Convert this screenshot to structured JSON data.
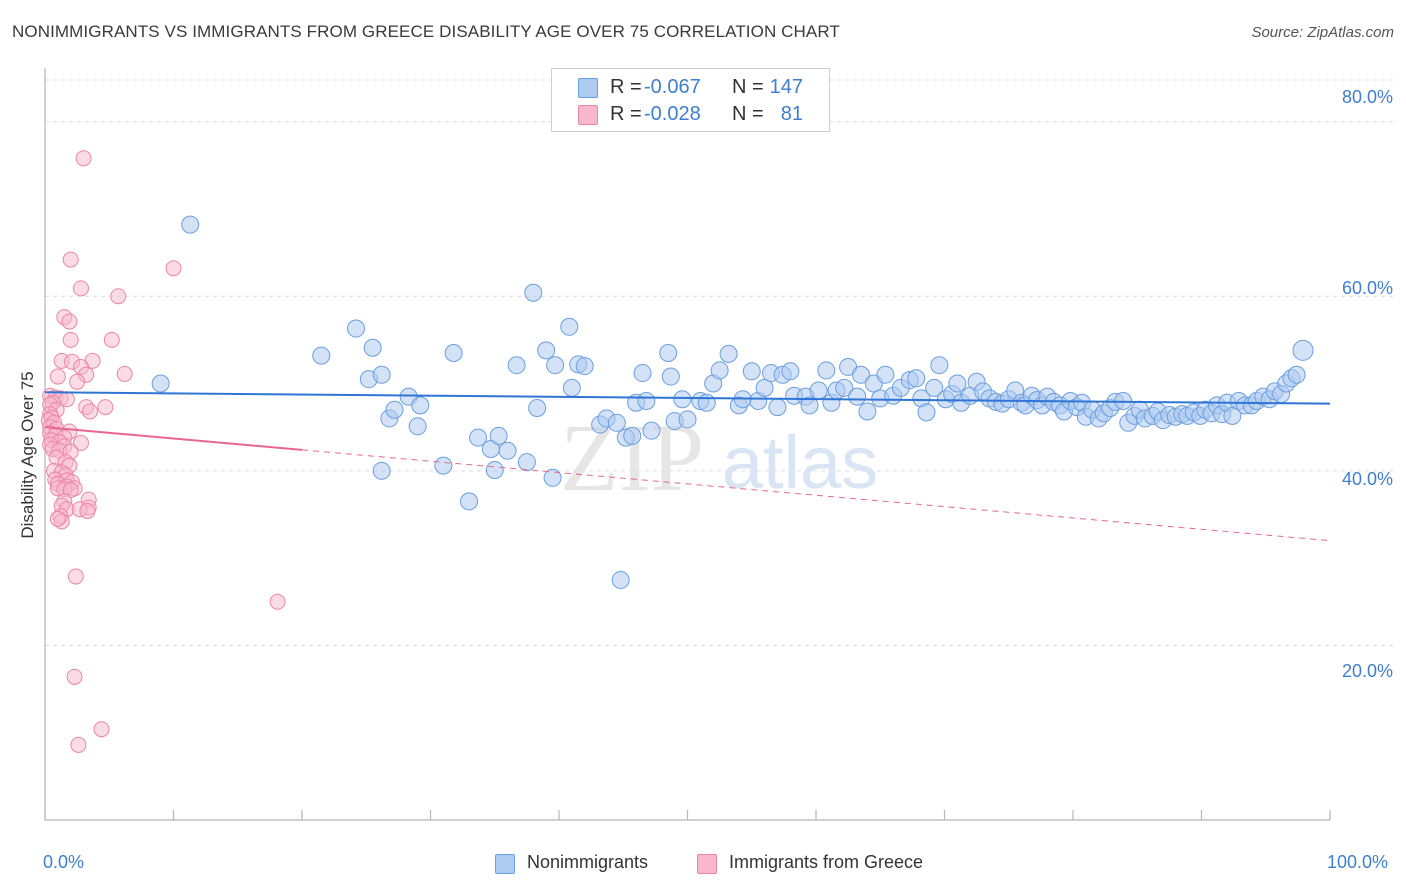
{
  "title": "NONIMMIGRANTS VS IMMIGRANTS FROM GREECE DISABILITY AGE OVER 75 CORRELATION CHART",
  "source": "Source: ZipAtlas.com",
  "watermark": {
    "zip": "ZIP",
    "atlas": "atlas"
  },
  "colors": {
    "blue_fill": "#aecbf1",
    "blue_stroke": "#6a9fe0",
    "blue_line": "#2e75d6",
    "pink_fill": "#f7b8cb",
    "pink_stroke": "#ec86a6",
    "pink_line": "#e8668f",
    "tick_text": "#3f7fd0",
    "grid": "#dcdcdc"
  },
  "stats": [
    {
      "label_r": "R =",
      "r": "-0.067",
      "label_n": "N =",
      "n": "147",
      "series": "Nonimmigrants"
    },
    {
      "label_r": "R =",
      "r": "-0.028",
      "label_n": "N =",
      "n": "81",
      "series": "Immigrants from Greece"
    }
  ],
  "legend": [
    "Nonimmigrants",
    "Immigrants from Greece"
  ],
  "chart_data": {
    "type": "scatter",
    "title": "NONIMMIGRANTS VS IMMIGRANTS FROM GREECE DISABILITY AGE OVER 75 CORRELATION CHART",
    "xlabel": "",
    "ylabel": "Disability Age Over 75",
    "xlim": [
      0,
      100
    ],
    "ylim": [
      0,
      85
    ],
    "x_tick_labels": [
      "0.0%",
      "100.0%"
    ],
    "y_ticks": [
      20,
      40,
      60,
      80
    ],
    "y_tick_labels": [
      "20.0%",
      "40.0%",
      "60.0%",
      "80.0%"
    ],
    "grid": true,
    "series": [
      {
        "name": "Nonimmigrants",
        "trend": {
          "x0": 0,
          "y0": 49.0,
          "x1": 100,
          "y1": 47.7,
          "dashed_from": null
        },
        "points": [
          [
            11.3,
            68.2
          ],
          [
            9.0,
            50.0
          ],
          [
            21.5,
            53.2
          ],
          [
            24.2,
            56.3
          ],
          [
            25.2,
            50.5
          ],
          [
            25.5,
            54.1
          ],
          [
            26.2,
            51.0
          ],
          [
            26.2,
            40.0
          ],
          [
            26.8,
            46.0
          ],
          [
            27.2,
            47.0
          ],
          [
            28.3,
            48.5
          ],
          [
            29.0,
            45.1
          ],
          [
            29.2,
            47.5
          ],
          [
            31.0,
            40.6
          ],
          [
            31.8,
            53.5
          ],
          [
            33.0,
            36.5
          ],
          [
            33.7,
            43.8
          ],
          [
            34.7,
            42.5
          ],
          [
            35.0,
            40.1
          ],
          [
            35.3,
            44.0
          ],
          [
            36.0,
            42.3
          ],
          [
            36.7,
            52.1
          ],
          [
            37.5,
            41.0
          ],
          [
            38.0,
            60.4
          ],
          [
            38.3,
            47.2
          ],
          [
            39.0,
            53.8
          ],
          [
            39.5,
            39.2
          ],
          [
            39.7,
            52.1
          ],
          [
            40.8,
            56.5
          ],
          [
            41.0,
            49.5
          ],
          [
            41.5,
            52.2
          ],
          [
            42.0,
            52.0
          ],
          [
            43.2,
            45.3
          ],
          [
            43.7,
            46.0
          ],
          [
            44.5,
            45.5
          ],
          [
            44.8,
            27.5
          ],
          [
            45.2,
            43.8
          ],
          [
            45.7,
            44.0
          ],
          [
            46.0,
            47.8
          ],
          [
            46.5,
            51.2
          ],
          [
            46.8,
            48.0
          ],
          [
            47.2,
            44.6
          ],
          [
            48.5,
            53.5
          ],
          [
            48.7,
            50.8
          ],
          [
            49.0,
            45.7
          ],
          [
            49.6,
            48.2
          ],
          [
            50.0,
            45.9
          ],
          [
            51.0,
            48.0
          ],
          [
            51.5,
            47.8
          ],
          [
            52.0,
            50.0
          ],
          [
            52.5,
            51.5
          ],
          [
            53.2,
            53.4
          ],
          [
            54.0,
            47.5
          ],
          [
            54.3,
            48.2
          ],
          [
            55.0,
            51.4
          ],
          [
            55.5,
            48.0
          ],
          [
            56.0,
            49.5
          ],
          [
            56.5,
            51.2
          ],
          [
            57.0,
            47.3
          ],
          [
            57.4,
            51.0
          ],
          [
            58.0,
            51.4
          ],
          [
            58.3,
            48.6
          ],
          [
            59.2,
            48.5
          ],
          [
            59.5,
            47.5
          ],
          [
            60.2,
            49.2
          ],
          [
            60.8,
            51.5
          ],
          [
            61.2,
            47.8
          ],
          [
            61.6,
            49.2
          ],
          [
            62.2,
            49.5
          ],
          [
            62.5,
            51.9
          ],
          [
            63.2,
            48.5
          ],
          [
            63.5,
            51.0
          ],
          [
            64.0,
            46.8
          ],
          [
            64.5,
            50.0
          ],
          [
            65.0,
            48.3
          ],
          [
            65.4,
            51.0
          ],
          [
            66.0,
            48.6
          ],
          [
            66.6,
            49.5
          ],
          [
            67.3,
            50.4
          ],
          [
            67.8,
            50.6
          ],
          [
            68.2,
            48.3
          ],
          [
            68.6,
            46.7
          ],
          [
            69.2,
            49.5
          ],
          [
            69.6,
            52.1
          ],
          [
            70.1,
            48.2
          ],
          [
            70.6,
            48.8
          ],
          [
            71.0,
            50.0
          ],
          [
            71.3,
            47.8
          ],
          [
            72.0,
            48.6
          ],
          [
            72.5,
            50.2
          ],
          [
            73.0,
            49.1
          ],
          [
            73.5,
            48.3
          ],
          [
            74.0,
            47.9
          ],
          [
            74.5,
            47.7
          ],
          [
            75.0,
            48.2
          ],
          [
            75.5,
            49.2
          ],
          [
            76.0,
            47.8
          ],
          [
            76.3,
            47.5
          ],
          [
            76.8,
            48.6
          ],
          [
            77.2,
            48.1
          ],
          [
            77.6,
            47.5
          ],
          [
            78.0,
            48.5
          ],
          [
            78.5,
            47.9
          ],
          [
            79.0,
            47.5
          ],
          [
            79.3,
            46.8
          ],
          [
            79.8,
            48.0
          ],
          [
            80.3,
            47.3
          ],
          [
            80.7,
            47.8
          ],
          [
            81.0,
            46.2
          ],
          [
            81.5,
            47.0
          ],
          [
            82.0,
            46.0
          ],
          [
            82.4,
            46.6
          ],
          [
            82.9,
            47.2
          ],
          [
            83.3,
            47.9
          ],
          [
            83.9,
            48.0
          ],
          [
            84.3,
            45.5
          ],
          [
            84.8,
            46.3
          ],
          [
            85.2,
            47.0
          ],
          [
            85.6,
            46.0
          ],
          [
            86.2,
            46.3
          ],
          [
            86.6,
            46.8
          ],
          [
            87.0,
            45.8
          ],
          [
            87.5,
            46.4
          ],
          [
            88.0,
            46.2
          ],
          [
            88.5,
            46.5
          ],
          [
            88.9,
            46.3
          ],
          [
            89.4,
            46.7
          ],
          [
            89.9,
            46.3
          ],
          [
            90.3,
            47.0
          ],
          [
            90.8,
            46.6
          ],
          [
            91.2,
            47.5
          ],
          [
            91.6,
            46.5
          ],
          [
            92.0,
            47.8
          ],
          [
            92.4,
            46.3
          ],
          [
            92.9,
            48.0
          ],
          [
            93.4,
            47.5
          ],
          [
            93.9,
            47.5
          ],
          [
            94.3,
            48.0
          ],
          [
            94.8,
            48.5
          ],
          [
            95.3,
            48.2
          ],
          [
            95.7,
            49.1
          ],
          [
            96.2,
            48.8
          ],
          [
            96.6,
            50.0
          ],
          [
            97.0,
            50.6
          ],
          [
            97.4,
            51.0
          ],
          [
            97.9,
            53.8
          ]
        ]
      },
      {
        "name": "Immigrants from Greece",
        "trend": {
          "x0": 0,
          "y0": 45.0,
          "x1": 100,
          "y1": 32.0,
          "dashed_from": 20
        },
        "points": [
          [
            3.0,
            75.8
          ],
          [
            2.0,
            64.2
          ],
          [
            10.0,
            63.2
          ],
          [
            2.8,
            60.9
          ],
          [
            5.7,
            60.0
          ],
          [
            1.5,
            57.6
          ],
          [
            1.9,
            57.1
          ],
          [
            5.2,
            55.0
          ],
          [
            2.0,
            55.0
          ],
          [
            1.3,
            52.6
          ],
          [
            2.1,
            52.5
          ],
          [
            3.7,
            52.6
          ],
          [
            2.8,
            51.9
          ],
          [
            6.2,
            51.1
          ],
          [
            3.2,
            51.0
          ],
          [
            1.0,
            50.8
          ],
          [
            2.5,
            50.2
          ],
          [
            0.4,
            48.6
          ],
          [
            0.8,
            48.4
          ],
          [
            1.2,
            48.3
          ],
          [
            1.7,
            48.2
          ],
          [
            0.6,
            47.8
          ],
          [
            0.4,
            47.6
          ],
          [
            3.2,
            47.3
          ],
          [
            4.7,
            47.3
          ],
          [
            0.9,
            47.0
          ],
          [
            3.5,
            46.8
          ],
          [
            0.4,
            46.5
          ],
          [
            0.5,
            46.1
          ],
          [
            0.3,
            45.8
          ],
          [
            0.7,
            45.5
          ],
          [
            0.4,
            45.0
          ],
          [
            0.9,
            44.8
          ],
          [
            1.9,
            44.5
          ],
          [
            0.4,
            44.3
          ],
          [
            0.8,
            44.0
          ],
          [
            1.5,
            43.8
          ],
          [
            0.5,
            43.5
          ],
          [
            1.1,
            43.3
          ],
          [
            2.8,
            43.2
          ],
          [
            0.4,
            43.0
          ],
          [
            1.5,
            42.8
          ],
          [
            0.6,
            42.5
          ],
          [
            1.1,
            42.3
          ],
          [
            2.0,
            42.2
          ],
          [
            0.9,
            41.5
          ],
          [
            1.6,
            41.0
          ],
          [
            1.9,
            40.6
          ],
          [
            0.7,
            40.0
          ],
          [
            1.3,
            39.8
          ],
          [
            1.6,
            39.5
          ],
          [
            0.8,
            39.0
          ],
          [
            1.7,
            38.9
          ],
          [
            2.1,
            38.7
          ],
          [
            1.0,
            38.5
          ],
          [
            1.7,
            38.2
          ],
          [
            2.3,
            38.0
          ],
          [
            1.0,
            38.0
          ],
          [
            1.5,
            37.9
          ],
          [
            2.0,
            37.8
          ],
          [
            3.4,
            36.7
          ],
          [
            1.5,
            36.5
          ],
          [
            1.3,
            36.0
          ],
          [
            3.4,
            35.8
          ],
          [
            1.7,
            35.6
          ],
          [
            2.7,
            35.6
          ],
          [
            3.3,
            35.4
          ],
          [
            1.2,
            34.8
          ],
          [
            1.3,
            34.2
          ],
          [
            1.0,
            34.5
          ],
          [
            2.4,
            27.9
          ],
          [
            18.1,
            25.0
          ],
          [
            2.3,
            16.4
          ],
          [
            4.4,
            10.4
          ],
          [
            2.6,
            8.6
          ]
        ]
      }
    ]
  }
}
